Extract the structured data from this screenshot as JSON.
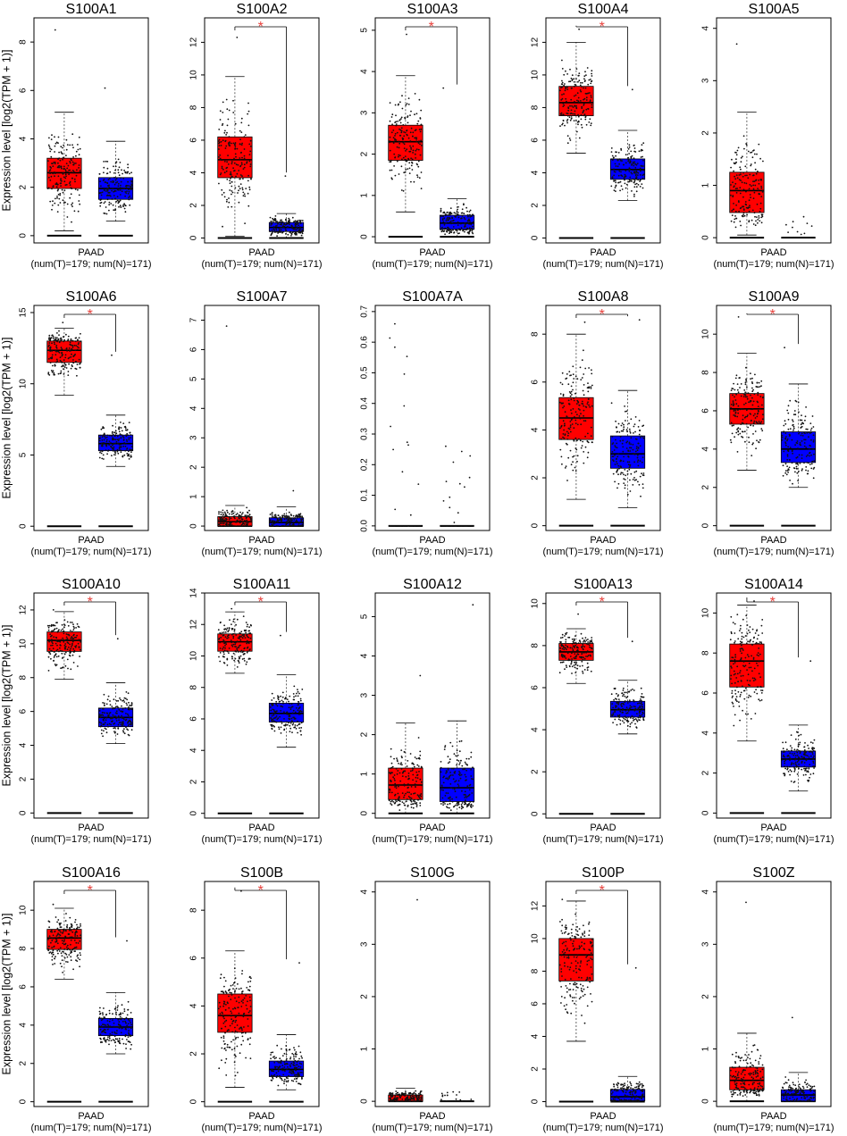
{
  "figure": {
    "ylabel": "Expression level [log2(TPM + 1)]",
    "cancer": "PAAD",
    "sample_note": "(num(T)=179; num(N)=171)",
    "significance_marker": "*",
    "colors": {
      "tumor": "#ff0000",
      "normal": "#0000ff",
      "sig": "#e8413c",
      "axis": "#000000"
    }
  },
  "chart_data": [
    {
      "type": "box",
      "title": "S100A1",
      "ylim": [
        -0.3,
        9.0
      ],
      "yticks": [
        0,
        2,
        4,
        6,
        8
      ],
      "significant": false,
      "series": [
        {
          "name": "T",
          "q1": 1.95,
          "median": 2.6,
          "q3": 3.2,
          "lo": 0.2,
          "hi": 5.1,
          "max": 8.5,
          "n": 179
        },
        {
          "name": "N",
          "q1": 1.5,
          "median": 1.95,
          "q3": 2.4,
          "lo": 0.6,
          "hi": 3.9,
          "max": 6.1,
          "n": 171
        }
      ]
    },
    {
      "type": "box",
      "title": "S100A2",
      "ylim": [
        -0.3,
        13.5
      ],
      "yticks": [
        0,
        2,
        4,
        6,
        8,
        10,
        12
      ],
      "significant": true,
      "series": [
        {
          "name": "T",
          "q1": 3.7,
          "median": 4.8,
          "q3": 6.2,
          "lo": 0.1,
          "hi": 9.9,
          "max": 12.3,
          "n": 179
        },
        {
          "name": "N",
          "q1": 0.4,
          "median": 0.65,
          "q3": 0.95,
          "lo": 0.0,
          "hi": 1.5,
          "max": 3.8,
          "n": 171
        }
      ]
    },
    {
      "type": "box",
      "title": "S100A3",
      "ylim": [
        -0.15,
        5.3
      ],
      "yticks": [
        0,
        1,
        2,
        3,
        4,
        5
      ],
      "significant": true,
      "series": [
        {
          "name": "T",
          "q1": 1.85,
          "median": 2.3,
          "q3": 2.7,
          "lo": 0.6,
          "hi": 3.9,
          "max": 4.9,
          "n": 179
        },
        {
          "name": "N",
          "q1": 0.18,
          "median": 0.33,
          "q3": 0.52,
          "lo": 0.0,
          "hi": 0.92,
          "max": 3.6,
          "n": 171
        }
      ]
    },
    {
      "type": "box",
      "title": "S100A4",
      "ylim": [
        -0.3,
        13.5
      ],
      "yticks": [
        0,
        2,
        4,
        6,
        8,
        10,
        12
      ],
      "significant": true,
      "series": [
        {
          "name": "T",
          "q1": 7.5,
          "median": 8.3,
          "q3": 9.3,
          "lo": 5.2,
          "hi": 12.0,
          "max": 12.8,
          "n": 179
        },
        {
          "name": "N",
          "q1": 3.6,
          "median": 4.2,
          "q3": 4.85,
          "lo": 2.3,
          "hi": 6.6,
          "max": 9.1,
          "n": 171
        }
      ]
    },
    {
      "type": "box",
      "title": "S100A5",
      "ylim": [
        -0.1,
        4.2
      ],
      "yticks": [
        0,
        1,
        2,
        3,
        4
      ],
      "significant": false,
      "series": [
        {
          "name": "T",
          "q1": 0.48,
          "median": 0.9,
          "q3": 1.25,
          "lo": 0.05,
          "hi": 2.4,
          "max": 3.7,
          "n": 179
        },
        {
          "name": "N",
          "q1": 0.0,
          "median": 0.0,
          "q3": 0.0,
          "lo": 0.0,
          "hi": 0.0,
          "max": 0.4,
          "n": 171
        }
      ]
    },
    {
      "type": "box",
      "title": "S100A6",
      "ylim": [
        -0.3,
        15.5
      ],
      "yticks": [
        0,
        5,
        10,
        15
      ],
      "significant": true,
      "series": [
        {
          "name": "T",
          "q1": 11.5,
          "median": 12.35,
          "q3": 13.0,
          "lo": 9.2,
          "hi": 13.9,
          "max": 14.3,
          "n": 179
        },
        {
          "name": "N",
          "q1": 5.3,
          "median": 5.8,
          "q3": 6.4,
          "lo": 4.2,
          "hi": 7.8,
          "max": 12.0,
          "n": 171
        }
      ]
    },
    {
      "type": "box",
      "title": "S100A7",
      "ylim": [
        -0.15,
        7.5
      ],
      "yticks": [
        0,
        1,
        2,
        3,
        4,
        5,
        6,
        7
      ],
      "significant": false,
      "series": [
        {
          "name": "T",
          "q1": 0.0,
          "median": 0.15,
          "q3": 0.32,
          "lo": 0.0,
          "hi": 0.7,
          "max": 6.8,
          "n": 179
        },
        {
          "name": "N",
          "q1": 0.0,
          "median": 0.12,
          "q3": 0.28,
          "lo": 0.0,
          "hi": 0.65,
          "max": 1.2,
          "n": 171
        }
      ]
    },
    {
      "type": "box",
      "title": "S100A7A",
      "ylim": [
        -0.015,
        0.72
      ],
      "yticks": [
        0.0,
        0.1,
        0.2,
        0.3,
        0.4,
        0.5,
        0.6,
        0.7
      ],
      "significant": false,
      "series": [
        {
          "name": "T",
          "q1": 0.0,
          "median": 0.0,
          "q3": 0.0,
          "lo": 0.0,
          "hi": 0.0,
          "max": 0.66,
          "n": 179
        },
        {
          "name": "N",
          "q1": 0.0,
          "median": 0.0,
          "q3": 0.0,
          "lo": 0.0,
          "hi": 0.0,
          "max": 0.26,
          "n": 171
        }
      ]
    },
    {
      "type": "box",
      "title": "S100A8",
      "ylim": [
        -0.2,
        9.2
      ],
      "yticks": [
        0,
        2,
        4,
        6,
        8
      ],
      "significant": true,
      "series": [
        {
          "name": "T",
          "q1": 3.6,
          "median": 4.5,
          "q3": 5.35,
          "lo": 1.1,
          "hi": 8.0,
          "max": 8.5,
          "n": 179
        },
        {
          "name": "N",
          "q1": 2.4,
          "median": 3.0,
          "q3": 3.75,
          "lo": 0.75,
          "hi": 5.65,
          "max": 8.6,
          "n": 171
        }
      ]
    },
    {
      "type": "box",
      "title": "S100A9",
      "ylim": [
        -0.25,
        11.5
      ],
      "yticks": [
        0,
        2,
        4,
        6,
        8,
        10
      ],
      "significant": true,
      "series": [
        {
          "name": "T",
          "q1": 5.3,
          "median": 6.1,
          "q3": 6.9,
          "lo": 2.9,
          "hi": 9.0,
          "max": 10.9,
          "n": 179
        },
        {
          "name": "N",
          "q1": 3.3,
          "median": 4.0,
          "q3": 4.9,
          "lo": 2.0,
          "hi": 7.4,
          "max": 9.3,
          "n": 171
        }
      ]
    },
    {
      "type": "box",
      "title": "S100A10",
      "ylim": [
        -0.3,
        13.0
      ],
      "yticks": [
        0,
        2,
        4,
        6,
        8,
        10,
        12
      ],
      "significant": true,
      "series": [
        {
          "name": "T",
          "q1": 9.55,
          "median": 10.2,
          "q3": 10.7,
          "lo": 7.9,
          "hi": 11.9,
          "max": 12.0,
          "n": 179
        },
        {
          "name": "N",
          "q1": 5.1,
          "median": 5.65,
          "q3": 6.2,
          "lo": 4.1,
          "hi": 7.7,
          "max": 10.3,
          "n": 171
        }
      ]
    },
    {
      "type": "box",
      "title": "S100A11",
      "ylim": [
        -0.3,
        14.0
      ],
      "yticks": [
        0,
        2,
        4,
        6,
        8,
        10,
        12,
        14
      ],
      "significant": true,
      "series": [
        {
          "name": "T",
          "q1": 10.3,
          "median": 10.9,
          "q3": 11.4,
          "lo": 8.9,
          "hi": 12.8,
          "max": 13.0,
          "n": 179
        },
        {
          "name": "N",
          "q1": 5.8,
          "median": 6.35,
          "q3": 7.0,
          "lo": 4.2,
          "hi": 8.8,
          "max": 11.3,
          "n": 171
        }
      ]
    },
    {
      "type": "box",
      "title": "S100A12",
      "ylim": [
        -0.12,
        5.6
      ],
      "yticks": [
        0,
        1,
        2,
        3,
        4,
        5
      ],
      "significant": false,
      "series": [
        {
          "name": "T",
          "q1": 0.35,
          "median": 0.72,
          "q3": 1.15,
          "lo": 0.0,
          "hi": 2.3,
          "max": 3.5,
          "n": 179
        },
        {
          "name": "N",
          "q1": 0.3,
          "median": 0.65,
          "q3": 1.15,
          "lo": 0.0,
          "hi": 2.35,
          "max": 5.3,
          "n": 171
        }
      ]
    },
    {
      "type": "box",
      "title": "S100A13",
      "ylim": [
        -0.2,
        10.5
      ],
      "yticks": [
        0,
        2,
        4,
        6,
        8,
        10
      ],
      "significant": true,
      "series": [
        {
          "name": "T",
          "q1": 7.3,
          "median": 7.7,
          "q3": 8.1,
          "lo": 6.2,
          "hi": 8.8,
          "max": 9.5,
          "n": 179
        },
        {
          "name": "N",
          "q1": 4.6,
          "median": 4.95,
          "q3": 5.35,
          "lo": 3.8,
          "hi": 6.35,
          "max": 8.2,
          "n": 171
        }
      ]
    },
    {
      "type": "box",
      "title": "S100A14",
      "ylim": [
        -0.25,
        11.0
      ],
      "yticks": [
        0,
        2,
        4,
        6,
        8,
        10
      ],
      "significant": true,
      "series": [
        {
          "name": "T",
          "q1": 6.3,
          "median": 7.6,
          "q3": 8.45,
          "lo": 3.6,
          "hi": 10.4,
          "max": 10.6,
          "n": 179
        },
        {
          "name": "N",
          "q1": 2.3,
          "median": 2.7,
          "q3": 3.1,
          "lo": 1.1,
          "hi": 4.4,
          "max": 7.6,
          "n": 171
        }
      ]
    },
    {
      "type": "box",
      "title": "S100A16",
      "ylim": [
        -0.25,
        11.5
      ],
      "yticks": [
        0,
        2,
        4,
        6,
        8,
        10
      ],
      "significant": true,
      "series": [
        {
          "name": "T",
          "q1": 7.95,
          "median": 8.55,
          "q3": 9.0,
          "lo": 6.4,
          "hi": 10.1,
          "max": 10.3,
          "n": 179
        },
        {
          "name": "N",
          "q1": 3.45,
          "median": 3.9,
          "q3": 4.35,
          "lo": 2.5,
          "hi": 5.7,
          "max": 8.4,
          "n": 171
        }
      ]
    },
    {
      "type": "box",
      "title": "S100B",
      "ylim": [
        -0.2,
        9.2
      ],
      "yticks": [
        0,
        2,
        4,
        6,
        8
      ],
      "significant": true,
      "series": [
        {
          "name": "T",
          "q1": 2.9,
          "median": 3.6,
          "q3": 4.5,
          "lo": 0.6,
          "hi": 6.3,
          "max": 8.8,
          "n": 179
        },
        {
          "name": "N",
          "q1": 1.05,
          "median": 1.35,
          "q3": 1.7,
          "lo": 0.5,
          "hi": 2.8,
          "max": 5.8,
          "n": 171
        }
      ]
    },
    {
      "type": "box",
      "title": "S100G",
      "ylim": [
        -0.1,
        4.2
      ],
      "yticks": [
        0,
        1,
        2,
        3,
        4
      ],
      "significant": false,
      "series": [
        {
          "name": "T",
          "q1": 0.0,
          "median": 0.0,
          "q3": 0.12,
          "lo": 0.0,
          "hi": 0.25,
          "max": 3.85,
          "n": 179
        },
        {
          "name": "N",
          "q1": 0.0,
          "median": 0.0,
          "q3": 0.0,
          "lo": 0.0,
          "hi": 0.0,
          "max": 0.18,
          "n": 171
        }
      ]
    },
    {
      "type": "box",
      "title": "S100P",
      "ylim": [
        -0.3,
        13.5
      ],
      "yticks": [
        0,
        2,
        4,
        6,
        8,
        10,
        12
      ],
      "significant": true,
      "series": [
        {
          "name": "T",
          "q1": 7.4,
          "median": 9.0,
          "q3": 10.0,
          "lo": 3.7,
          "hi": 12.3,
          "max": 12.4,
          "n": 179
        },
        {
          "name": "N",
          "q1": 0.05,
          "median": 0.3,
          "q3": 0.75,
          "lo": 0.0,
          "hi": 1.55,
          "max": 8.2,
          "n": 171
        }
      ]
    },
    {
      "type": "box",
      "title": "S100Z",
      "ylim": [
        -0.1,
        4.2
      ],
      "yticks": [
        0,
        1,
        2,
        3,
        4
      ],
      "significant": false,
      "series": [
        {
          "name": "T",
          "q1": 0.22,
          "median": 0.4,
          "q3": 0.65,
          "lo": 0.0,
          "hi": 1.3,
          "max": 3.8,
          "n": 179
        },
        {
          "name": "N",
          "q1": 0.0,
          "median": 0.12,
          "q3": 0.22,
          "lo": 0.0,
          "hi": 0.55,
          "max": 1.6,
          "n": 171
        }
      ]
    }
  ]
}
